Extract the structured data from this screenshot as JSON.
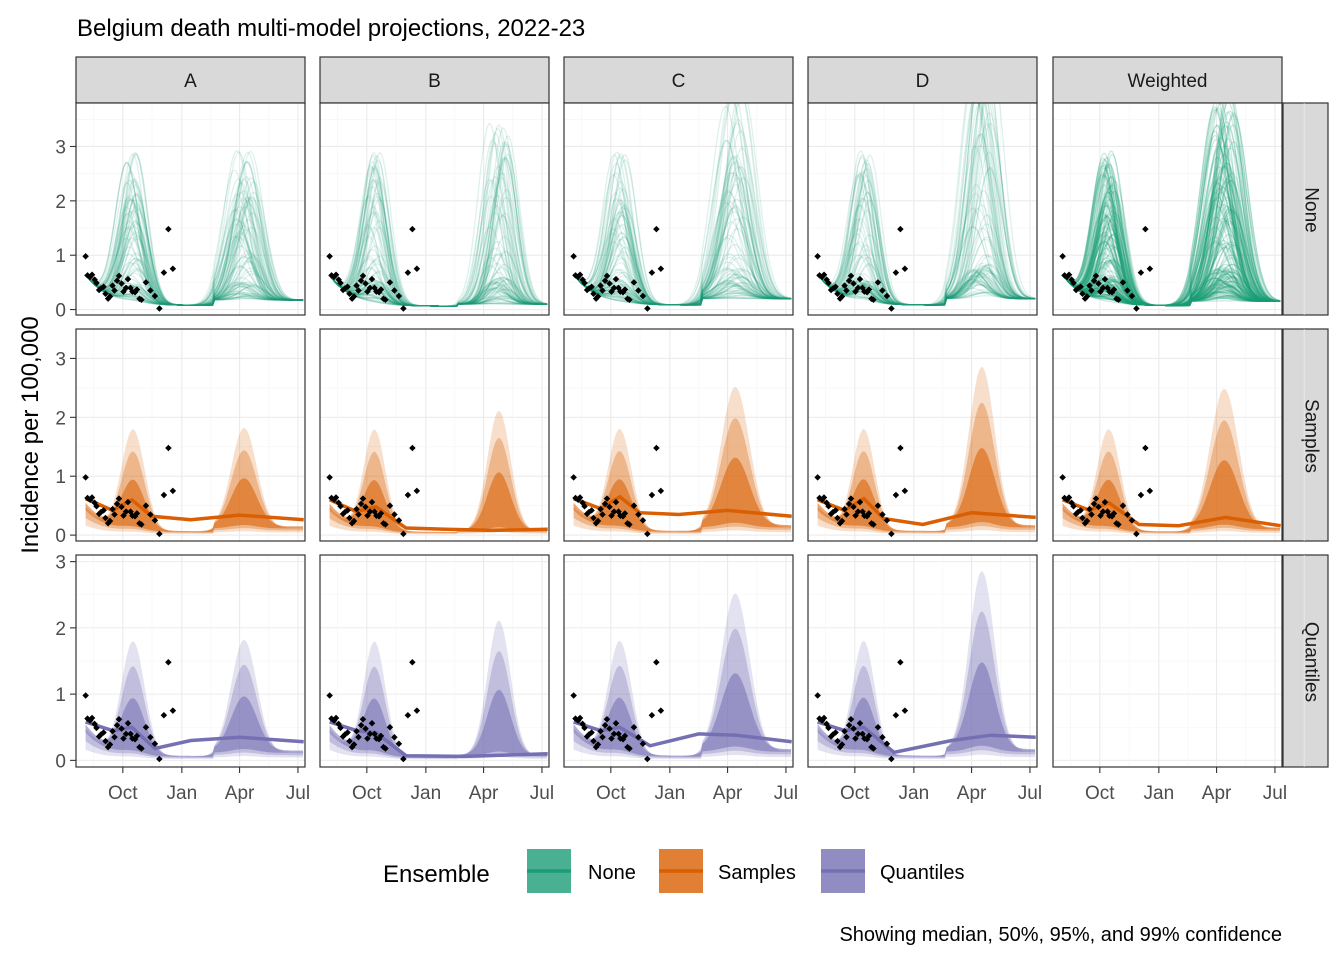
{
  "title": "Belgium death multi-model projections, 2022-23",
  "ylabel": "Incidence per 100,000",
  "caption": "Showing median, 50%, 95%, and 99% confidence",
  "legend": {
    "title": "Ensemble",
    "items": [
      {
        "label": "None",
        "color": "#1b9e77"
      },
      {
        "label": "Samples",
        "color": "#d95f02"
      },
      {
        "label": "Quantiles",
        "color": "#7570b3"
      }
    ]
  },
  "chart_data": {
    "type": "area",
    "columns": [
      "A",
      "B",
      "C",
      "D",
      "Weighted"
    ],
    "rows": [
      "None",
      "Samples",
      "Quantiles"
    ],
    "x_ticks": [
      {
        "label": "Oct",
        "date": "2022-10-01"
      },
      {
        "label": "Jan",
        "date": "2023-01-01"
      },
      {
        "label": "Apr",
        "date": "2023-04-01"
      },
      {
        "label": "Jul",
        "date": "2023-07-01"
      }
    ],
    "xlim": [
      "2022-07-20",
      "2023-07-12"
    ],
    "y_ticks": [
      0,
      1,
      2,
      3
    ],
    "row_ylim": {
      "None": [
        -0.1,
        3.8
      ],
      "Samples": [
        -0.1,
        3.5
      ],
      "Quantiles": [
        -0.1,
        3.1
      ]
    },
    "observed": [
      {
        "date": "2022-08-04",
        "value": 0.98
      },
      {
        "date": "2022-08-07",
        "value": 0.63
      },
      {
        "date": "2022-08-11",
        "value": 0.6
      },
      {
        "date": "2022-08-14",
        "value": 0.64
      },
      {
        "date": "2022-08-18",
        "value": 0.55
      },
      {
        "date": "2022-08-21",
        "value": 0.49
      },
      {
        "date": "2022-08-25",
        "value": 0.36
      },
      {
        "date": "2022-08-28",
        "value": 0.39
      },
      {
        "date": "2022-09-01",
        "value": 0.42
      },
      {
        "date": "2022-09-04",
        "value": 0.29
      },
      {
        "date": "2022-09-08",
        "value": 0.2
      },
      {
        "date": "2022-09-11",
        "value": 0.24
      },
      {
        "date": "2022-09-15",
        "value": 0.44
      },
      {
        "date": "2022-09-18",
        "value": 0.35
      },
      {
        "date": "2022-09-22",
        "value": 0.53
      },
      {
        "date": "2022-09-25",
        "value": 0.62
      },
      {
        "date": "2022-09-29",
        "value": 0.48
      },
      {
        "date": "2022-10-02",
        "value": 0.33
      },
      {
        "date": "2022-10-06",
        "value": 0.4
      },
      {
        "date": "2022-10-09",
        "value": 0.56
      },
      {
        "date": "2022-10-13",
        "value": 0.4
      },
      {
        "date": "2022-10-16",
        "value": 0.33
      },
      {
        "date": "2022-10-20",
        "value": 0.32
      },
      {
        "date": "2022-10-23",
        "value": 0.37
      },
      {
        "date": "2022-10-27",
        "value": 0.2
      },
      {
        "date": "2022-10-30",
        "value": 0.18
      },
      {
        "date": "2022-11-06",
        "value": 0.5
      },
      {
        "date": "2022-11-13",
        "value": 0.35
      },
      {
        "date": "2022-11-20",
        "value": 0.25
      },
      {
        "date": "2022-11-27",
        "value": 0.02
      },
      {
        "date": "2022-12-04",
        "value": 0.68
      },
      {
        "date": "2022-12-11",
        "value": 1.48
      },
      {
        "date": "2022-12-18",
        "value": 0.75
      }
    ],
    "median_series": [
      {
        "name": "Samples",
        "panels": [
          {
            "column": "A",
            "values": [
              {
                "date": "2022-08-04",
                "value": 0.62
              },
              {
                "date": "2022-09-15",
                "value": 0.42
              },
              {
                "date": "2022-10-15",
                "value": 0.6
              },
              {
                "date": "2022-11-15",
                "value": 0.32
              },
              {
                "date": "2023-01-15",
                "value": 0.26
              },
              {
                "date": "2023-04-01",
                "value": 0.34
              },
              {
                "date": "2023-07-10",
                "value": 0.26
              }
            ]
          },
          {
            "column": "B",
            "values": [
              {
                "date": "2022-08-04",
                "value": 0.6
              },
              {
                "date": "2022-09-15",
                "value": 0.4
              },
              {
                "date": "2022-10-15",
                "value": 0.48
              },
              {
                "date": "2022-12-01",
                "value": 0.12
              },
              {
                "date": "2023-02-01",
                "value": 0.1
              },
              {
                "date": "2023-04-15",
                "value": 0.08
              },
              {
                "date": "2023-07-10",
                "value": 0.1
              }
            ]
          },
          {
            "column": "C",
            "values": [
              {
                "date": "2022-08-04",
                "value": 0.62
              },
              {
                "date": "2022-09-15",
                "value": 0.45
              },
              {
                "date": "2022-10-15",
                "value": 0.65
              },
              {
                "date": "2022-11-15",
                "value": 0.38
              },
              {
                "date": "2023-01-15",
                "value": 0.35
              },
              {
                "date": "2023-04-01",
                "value": 0.42
              },
              {
                "date": "2023-07-10",
                "value": 0.32
              }
            ]
          },
          {
            "column": "D",
            "values": [
              {
                "date": "2022-08-04",
                "value": 0.6
              },
              {
                "date": "2022-09-15",
                "value": 0.42
              },
              {
                "date": "2022-10-15",
                "value": 0.62
              },
              {
                "date": "2022-11-15",
                "value": 0.28
              },
              {
                "date": "2023-01-15",
                "value": 0.18
              },
              {
                "date": "2023-04-01",
                "value": 0.38
              },
              {
                "date": "2023-07-10",
                "value": 0.3
              }
            ]
          },
          {
            "column": "Weighted",
            "values": [
              {
                "date": "2022-08-04",
                "value": 0.6
              },
              {
                "date": "2022-09-15",
                "value": 0.42
              },
              {
                "date": "2022-10-15",
                "value": 0.55
              },
              {
                "date": "2022-12-01",
                "value": 0.18
              },
              {
                "date": "2023-02-01",
                "value": 0.16
              },
              {
                "date": "2023-04-15",
                "value": 0.3
              },
              {
                "date": "2023-07-10",
                "value": 0.16
              }
            ]
          }
        ]
      },
      {
        "name": "Quantiles",
        "panels": [
          {
            "column": "A",
            "values": [
              {
                "date": "2022-08-04",
                "value": 0.58
              },
              {
                "date": "2022-09-15",
                "value": 0.45
              },
              {
                "date": "2022-10-15",
                "value": 0.5
              },
              {
                "date": "2022-11-20",
                "value": 0.18
              },
              {
                "date": "2023-01-15",
                "value": 0.3
              },
              {
                "date": "2023-04-01",
                "value": 0.35
              },
              {
                "date": "2023-07-10",
                "value": 0.28
              }
            ]
          },
          {
            "column": "B",
            "values": [
              {
                "date": "2022-08-04",
                "value": 0.58
              },
              {
                "date": "2022-09-15",
                "value": 0.45
              },
              {
                "date": "2022-10-15",
                "value": 0.42
              },
              {
                "date": "2022-12-01",
                "value": 0.07
              },
              {
                "date": "2023-03-01",
                "value": 0.06
              },
              {
                "date": "2023-07-10",
                "value": 0.1
              }
            ]
          },
          {
            "column": "C",
            "values": [
              {
                "date": "2022-08-04",
                "value": 0.58
              },
              {
                "date": "2022-09-15",
                "value": 0.45
              },
              {
                "date": "2022-10-15",
                "value": 0.5
              },
              {
                "date": "2022-12-01",
                "value": 0.22
              },
              {
                "date": "2023-02-15",
                "value": 0.4
              },
              {
                "date": "2023-04-15",
                "value": 0.38
              },
              {
                "date": "2023-07-10",
                "value": 0.28
              }
            ]
          },
          {
            "column": "D",
            "values": [
              {
                "date": "2022-08-04",
                "value": 0.58
              },
              {
                "date": "2022-09-15",
                "value": 0.45
              },
              {
                "date": "2022-10-15",
                "value": 0.5
              },
              {
                "date": "2022-12-01",
                "value": 0.12
              },
              {
                "date": "2023-03-01",
                "value": 0.3
              },
              {
                "date": "2023-05-01",
                "value": 0.38
              },
              {
                "date": "2023-07-10",
                "value": 0.35
              }
            ]
          }
        ]
      }
    ]
  }
}
